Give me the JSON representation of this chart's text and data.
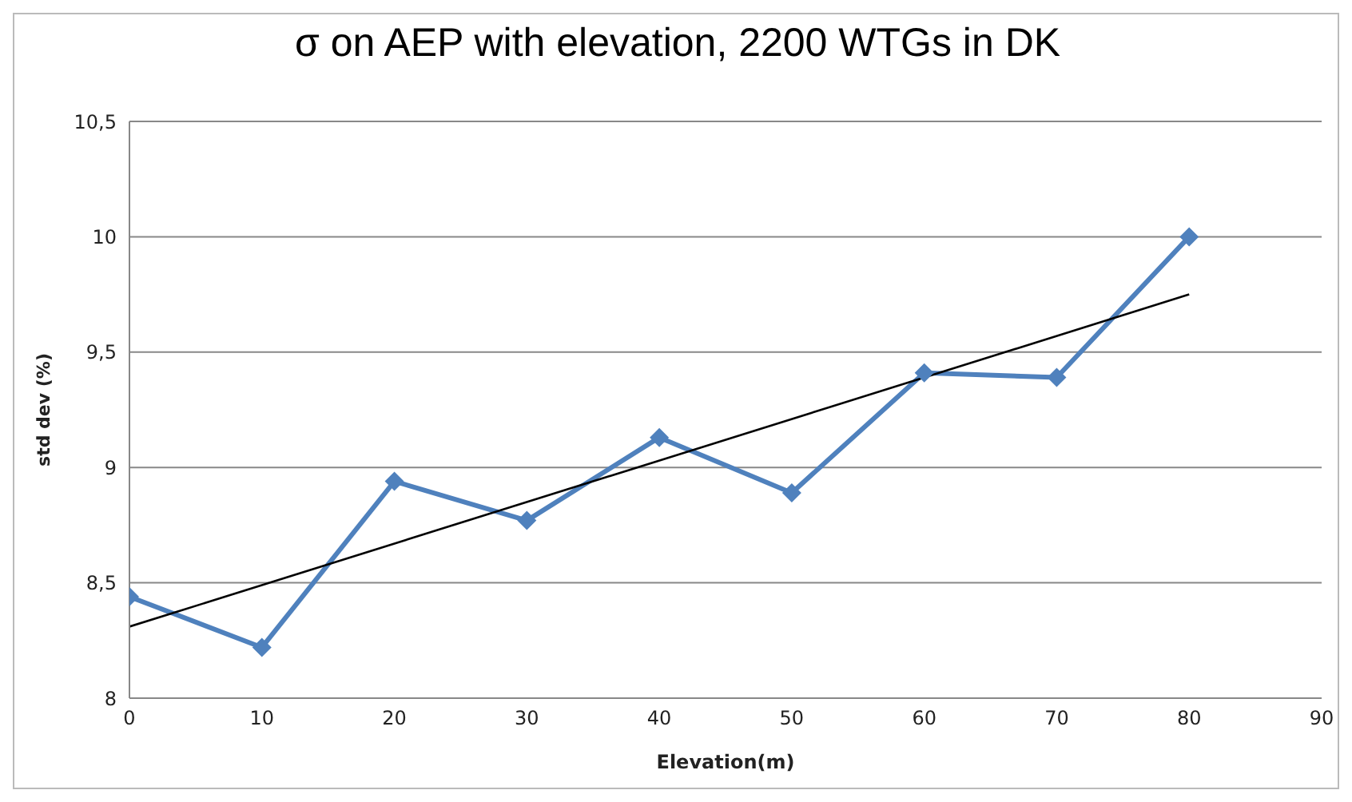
{
  "chart_data": {
    "type": "line",
    "title": "σ on AEP with elevation, 2200 WTGs in DK",
    "xlabel": "Elevation(m)",
    "ylabel": "std dev (%)",
    "xlim": [
      0,
      90
    ],
    "xticks": [
      0,
      10,
      20,
      30,
      40,
      50,
      60,
      70,
      80,
      90
    ],
    "ylim": [
      8,
      10.5
    ],
    "yticks": [
      8,
      {
        "value": 8.5,
        "label": "8,5"
      },
      9,
      {
        "value": 9.5,
        "label": "9,5"
      },
      10,
      {
        "value": 10.5,
        "label": "10,5"
      }
    ],
    "grid": "y",
    "series": [
      {
        "color": "#4f81bd",
        "marker": "diamond",
        "x": [
          0,
          10,
          20,
          30,
          40,
          50,
          60,
          70,
          80
        ],
        "values": [
          8.44,
          8.22,
          8.94,
          8.77,
          9.13,
          8.89,
          9.41,
          9.39,
          10.0
        ]
      },
      {
        "color": "#000000",
        "marker": "none",
        "x": [
          0,
          80
        ],
        "values": [
          8.31,
          9.75
        ]
      }
    ]
  }
}
